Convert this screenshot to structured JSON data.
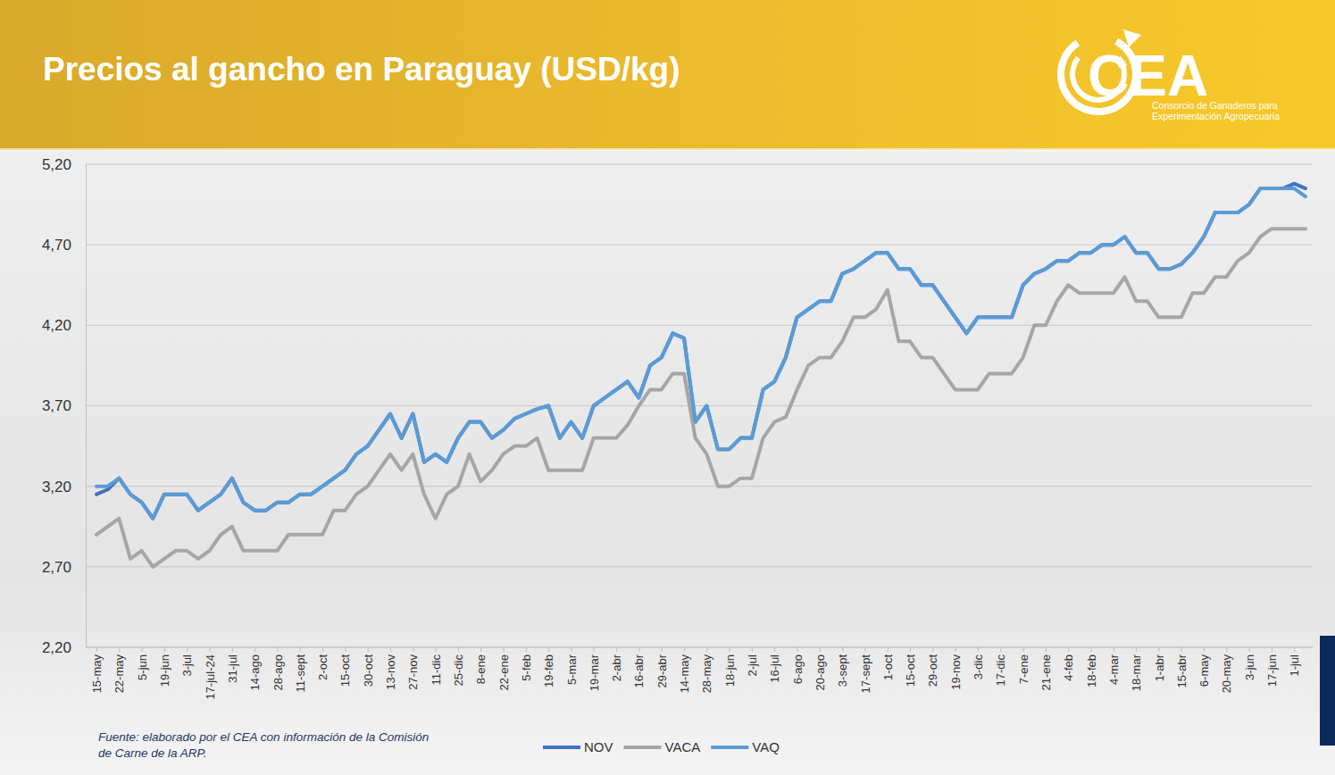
{
  "chart_data": {
    "type": "line",
    "title": "Precios al gancho en Paraguay (USD/kg)",
    "logo": "CEA",
    "logo_subtitle": [
      "Consorcio de Ganaderos para",
      "Experimentación Agropecuaria"
    ],
    "source": [
      "Fuente: elaborado por el CEA con información de la Comisión",
      "de Carne de la ARP."
    ],
    "categories": [
      "15-may",
      null,
      "22-may",
      null,
      "5-jun",
      null,
      "19-jun",
      null,
      "3-jul",
      null,
      "17-jul-24",
      null,
      "31-jul",
      null,
      "14-ago",
      null,
      "28-ago",
      null,
      "11-sept",
      null,
      "2-oct",
      null,
      "15-oct",
      null,
      "30-oct",
      null,
      "13-nov",
      null,
      "27-nov",
      null,
      "11-dic",
      null,
      "25-dic",
      null,
      "8-ene",
      null,
      "22-ene",
      null,
      "5-feb",
      null,
      "19-feb",
      null,
      "5-mar",
      null,
      "19-mar",
      null,
      "2-abr",
      null,
      "16-abr",
      null,
      "29-abr",
      null,
      "14-may",
      null,
      "28-may",
      null,
      "18-jun",
      null,
      "2-jul",
      null,
      "16-jul",
      null,
      "6-ago",
      null,
      "20-ago",
      null,
      "3-sept",
      null,
      "17-sept",
      null,
      "1-oct",
      null,
      "15-oct",
      null,
      "29-oct",
      null,
      "19-nov",
      null,
      "3-dic",
      null,
      "17-dic",
      null,
      "7-ene",
      null,
      "21-ene",
      null,
      "4-feb",
      null,
      "18-feb",
      null,
      "4-mar",
      null,
      "18-mar",
      null,
      "1-abr",
      null,
      "15-abr",
      null,
      "6-may",
      null,
      "20-may",
      null,
      "3-jun",
      null,
      "17-jun",
      null,
      "1-jul",
      null
    ],
    "series": [
      {
        "name": "NOV",
        "color": "#3f72c4",
        "values": [
          3.15,
          3.18,
          3.25,
          3.15,
          3.1,
          3.0,
          3.15,
          3.15,
          3.15,
          3.05,
          3.1,
          3.15,
          3.25,
          3.1,
          3.05,
          3.05,
          3.1,
          3.1,
          3.15,
          3.15,
          3.2,
          3.25,
          3.3,
          3.4,
          3.45,
          3.55,
          3.65,
          3.5,
          3.65,
          3.35,
          3.4,
          3.35,
          3.5,
          3.6,
          3.6,
          3.5,
          3.55,
          3.62,
          3.65,
          3.68,
          3.7,
          3.5,
          3.6,
          3.5,
          3.7,
          3.75,
          3.8,
          3.85,
          3.75,
          3.95,
          4.0,
          4.15,
          4.12,
          3.6,
          3.7,
          3.43,
          3.43,
          3.5,
          3.5,
          3.8,
          3.85,
          4.0,
          4.25,
          4.3,
          4.35,
          4.35,
          4.52,
          4.55,
          4.6,
          4.65,
          4.65,
          4.55,
          4.55,
          4.45,
          4.45,
          4.35,
          4.25,
          4.15,
          4.25,
          4.25,
          4.25,
          4.25,
          4.45,
          4.52,
          4.55,
          4.6,
          4.6,
          4.65,
          4.65,
          4.7,
          4.7,
          4.75,
          4.65,
          4.65,
          4.55,
          4.55,
          4.58,
          4.65,
          4.75,
          4.9,
          4.9,
          4.9,
          4.95,
          5.05,
          5.05,
          5.05,
          5.08,
          5.05
        ]
      },
      {
        "name": "VACA",
        "color": "#a6a6a6",
        "values": [
          2.9,
          2.95,
          3.0,
          2.75,
          2.8,
          2.7,
          2.75,
          2.8,
          2.8,
          2.75,
          2.8,
          2.9,
          2.95,
          2.8,
          2.8,
          2.8,
          2.8,
          2.9,
          2.9,
          2.9,
          2.9,
          3.05,
          3.05,
          3.15,
          3.2,
          3.3,
          3.4,
          3.3,
          3.4,
          3.15,
          3.0,
          3.15,
          3.2,
          3.4,
          3.23,
          3.3,
          3.4,
          3.45,
          3.45,
          3.5,
          3.3,
          3.3,
          3.3,
          3.3,
          3.5,
          3.5,
          3.5,
          3.58,
          3.7,
          3.8,
          3.8,
          3.9,
          3.9,
          3.5,
          3.4,
          3.2,
          3.2,
          3.25,
          3.25,
          3.5,
          3.6,
          3.63,
          3.8,
          3.95,
          4.0,
          4.0,
          4.1,
          4.25,
          4.25,
          4.3,
          4.42,
          4.1,
          4.1,
          4.0,
          4.0,
          3.9,
          3.8,
          3.8,
          3.8,
          3.9,
          3.9,
          3.9,
          4.0,
          4.2,
          4.2,
          4.35,
          4.45,
          4.4,
          4.4,
          4.4,
          4.4,
          4.5,
          4.35,
          4.35,
          4.25,
          4.25,
          4.25,
          4.4,
          4.4,
          4.5,
          4.5,
          4.6,
          4.65,
          4.75,
          4.8,
          4.8,
          4.8,
          4.8
        ]
      },
      {
        "name": "VAQ",
        "color": "#5b9bd5",
        "values": [
          3.2,
          3.2,
          3.25,
          3.15,
          3.1,
          3.0,
          3.15,
          3.15,
          3.15,
          3.05,
          3.1,
          3.15,
          3.25,
          3.1,
          3.05,
          3.05,
          3.1,
          3.1,
          3.15,
          3.15,
          3.2,
          3.25,
          3.3,
          3.4,
          3.45,
          3.55,
          3.65,
          3.5,
          3.65,
          3.35,
          3.4,
          3.35,
          3.5,
          3.6,
          3.6,
          3.5,
          3.55,
          3.62,
          3.65,
          3.68,
          3.7,
          3.5,
          3.6,
          3.5,
          3.7,
          3.75,
          3.8,
          3.85,
          3.75,
          3.95,
          4.0,
          4.15,
          4.12,
          3.6,
          3.7,
          3.43,
          3.43,
          3.5,
          3.5,
          3.8,
          3.85,
          4.0,
          4.25,
          4.3,
          4.35,
          4.35,
          4.52,
          4.55,
          4.6,
          4.65,
          4.65,
          4.55,
          4.55,
          4.45,
          4.45,
          4.35,
          4.25,
          4.15,
          4.25,
          4.25,
          4.25,
          4.25,
          4.45,
          4.52,
          4.55,
          4.6,
          4.6,
          4.65,
          4.65,
          4.7,
          4.7,
          4.75,
          4.65,
          4.65,
          4.55,
          4.55,
          4.58,
          4.65,
          4.75,
          4.9,
          4.9,
          4.9,
          4.95,
          5.05,
          5.05,
          5.05,
          5.05,
          5.0
        ]
      }
    ],
    "ylim": [
      2.2,
      5.2
    ],
    "yticks": [
      {
        "value": 2.2,
        "label": "2,20"
      },
      {
        "value": 2.7,
        "label": "2,70"
      },
      {
        "value": 3.2,
        "label": "3,20"
      },
      {
        "value": 3.7,
        "label": "3,70"
      },
      {
        "value": 4.2,
        "label": "4,20"
      },
      {
        "value": 4.7,
        "label": "4,70"
      },
      {
        "value": 5.2,
        "label": "5,20"
      }
    ],
    "grid": true,
    "legend": "bottom"
  }
}
